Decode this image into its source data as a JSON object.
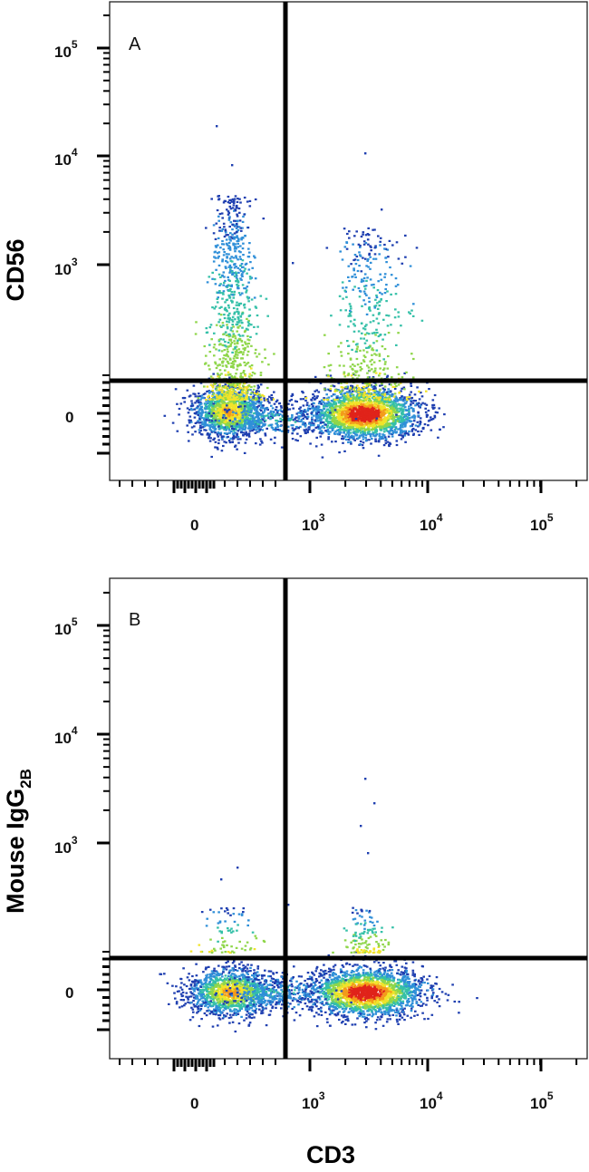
{
  "chart_data": [
    {
      "type": "scatter",
      "subtype": "flow cytometry density dot plot",
      "panel_label": "A",
      "ylabel": "CD56",
      "xlabel": "",
      "x_scale": "biexponential",
      "y_scale": "biexponential",
      "x_ticks": [
        {
          "value": 0,
          "base": "0",
          "exp": ""
        },
        {
          "value": 1000,
          "base": "10",
          "exp": "3"
        },
        {
          "value": 10000,
          "base": "10",
          "exp": "4"
        },
        {
          "value": 100000,
          "base": "10",
          "exp": "5"
        }
      ],
      "y_ticks": [
        {
          "value": 0,
          "base": "0",
          "exp": ""
        },
        {
          "value": 1000,
          "base": "10",
          "exp": "3"
        },
        {
          "value": 10000,
          "base": "10",
          "exp": "4"
        },
        {
          "value": 100000,
          "base": "10",
          "exp": "5"
        }
      ],
      "quadrant_gate": {
        "x": 600,
        "y": 150
      },
      "populations": [
        {
          "name": "CD3-negative",
          "x_center": 180,
          "y_center": 0,
          "peak_density": "medium"
        },
        {
          "name": "CD3-negative CD56-positive",
          "x_center": 190,
          "y_center": 250,
          "y_upper": 3000,
          "peak_density": "low"
        },
        {
          "name": "CD3-positive",
          "x_center": 2500,
          "y_center": 0,
          "peak_density": "high"
        },
        {
          "name": "CD3-positive CD56-positive",
          "x_center": 3000,
          "y_center": 300,
          "y_upper": 2500,
          "peak_density": "low"
        }
      ],
      "color_scale": [
        "#1f3fb0",
        "#2f8fd8",
        "#35c0a8",
        "#8fd64a",
        "#f1e32a",
        "#f39a1b",
        "#e0231a"
      ]
    },
    {
      "type": "scatter",
      "subtype": "flow cytometry density dot plot",
      "panel_label": "B",
      "ylabel": "Mouse IgG",
      "ylabel_subscript": "2B",
      "xlabel": "CD3",
      "x_scale": "biexponential",
      "y_scale": "biexponential",
      "x_ticks": [
        {
          "value": 0,
          "base": "0",
          "exp": ""
        },
        {
          "value": 1000,
          "base": "10",
          "exp": "3"
        },
        {
          "value": 10000,
          "base": "10",
          "exp": "4"
        },
        {
          "value": 100000,
          "base": "10",
          "exp": "5"
        }
      ],
      "y_ticks": [
        {
          "value": 0,
          "base": "0",
          "exp": ""
        },
        {
          "value": 1000,
          "base": "10",
          "exp": "3"
        },
        {
          "value": 10000,
          "base": "10",
          "exp": "4"
        },
        {
          "value": 100000,
          "base": "10",
          "exp": "5"
        }
      ],
      "quadrant_gate": {
        "x": 600,
        "y": 150
      },
      "populations": [
        {
          "name": "CD3-negative",
          "x_center": 180,
          "y_center": 0,
          "peak_density": "medium"
        },
        {
          "name": "CD3-positive",
          "x_center": 2500,
          "y_center": 0,
          "peak_density": "high"
        }
      ],
      "color_scale": [
        "#1f3fb0",
        "#2f8fd8",
        "#35c0a8",
        "#8fd64a",
        "#f1e32a",
        "#f39a1b",
        "#e0231a"
      ]
    }
  ]
}
